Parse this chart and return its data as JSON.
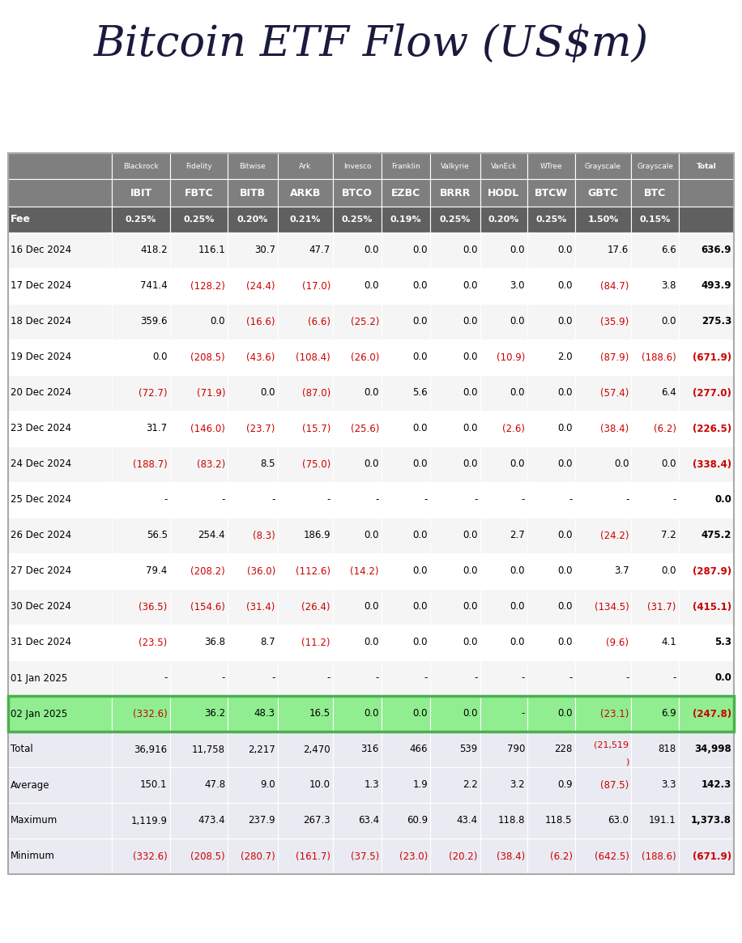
{
  "title": "Bitcoin ETF Flow (US$m)",
  "providers": [
    "Blackrock",
    "Fidelity",
    "Bitwise",
    "Ark",
    "Invesco",
    "Franklin",
    "Valkyrie",
    "VanEck",
    "WTree",
    "Grayscale",
    "Grayscale",
    "Total"
  ],
  "tickers": [
    "IBIT",
    "FBTC",
    "BITB",
    "ARKB",
    "BTCO",
    "EZBC",
    "BRRR",
    "HODL",
    "BTCW",
    "GBTC",
    "BTC",
    ""
  ],
  "fees": [
    "0.25%",
    "0.25%",
    "0.20%",
    "0.21%",
    "0.25%",
    "0.19%",
    "0.25%",
    "0.20%",
    "0.25%",
    "1.50%",
    "0.15%",
    ""
  ],
  "rows": [
    {
      "date": "16 Dec 2024",
      "values": [
        "418.2",
        "116.1",
        "30.7",
        "47.7",
        "0.0",
        "0.0",
        "0.0",
        "0.0",
        "0.0",
        "17.6",
        "6.6",
        "636.9"
      ],
      "highlight": false,
      "holiday": false
    },
    {
      "date": "17 Dec 2024",
      "values": [
        "741.4",
        "(128.2)",
        "(24.4)",
        "(17.0)",
        "0.0",
        "0.0",
        "0.0",
        "3.0",
        "0.0",
        "(84.7)",
        "3.8",
        "493.9"
      ],
      "highlight": false,
      "holiday": false
    },
    {
      "date": "18 Dec 2024",
      "values": [
        "359.6",
        "0.0",
        "(16.6)",
        "(6.6)",
        "(25.2)",
        "0.0",
        "0.0",
        "0.0",
        "0.0",
        "(35.9)",
        "0.0",
        "275.3"
      ],
      "highlight": false,
      "holiday": false
    },
    {
      "date": "19 Dec 2024",
      "values": [
        "0.0",
        "(208.5)",
        "(43.6)",
        "(108.4)",
        "(26.0)",
        "0.0",
        "0.0",
        "(10.9)",
        "2.0",
        "(87.9)",
        "(188.6)",
        "(671.9)"
      ],
      "highlight": false,
      "holiday": false
    },
    {
      "date": "20 Dec 2024",
      "values": [
        "(72.7)",
        "(71.9)",
        "0.0",
        "(87.0)",
        "0.0",
        "5.6",
        "0.0",
        "0.0",
        "0.0",
        "(57.4)",
        "6.4",
        "(277.0)"
      ],
      "highlight": false,
      "holiday": false
    },
    {
      "date": "23 Dec 2024",
      "values": [
        "31.7",
        "(146.0)",
        "(23.7)",
        "(15.7)",
        "(25.6)",
        "0.0",
        "0.0",
        "(2.6)",
        "0.0",
        "(38.4)",
        "(6.2)",
        "(226.5)"
      ],
      "highlight": false,
      "holiday": false
    },
    {
      "date": "24 Dec 2024",
      "values": [
        "(188.7)",
        "(83.2)",
        "8.5",
        "(75.0)",
        "0.0",
        "0.0",
        "0.0",
        "0.0",
        "0.0",
        "0.0",
        "0.0",
        "(338.4)"
      ],
      "highlight": false,
      "holiday": false
    },
    {
      "date": "25 Dec 2024",
      "values": [
        "-",
        "-",
        "-",
        "-",
        "-",
        "-",
        "-",
        "-",
        "-",
        "-",
        "-",
        "0.0"
      ],
      "highlight": false,
      "holiday": true
    },
    {
      "date": "26 Dec 2024",
      "values": [
        "56.5",
        "254.4",
        "(8.3)",
        "186.9",
        "0.0",
        "0.0",
        "0.0",
        "2.7",
        "0.0",
        "(24.2)",
        "7.2",
        "475.2"
      ],
      "highlight": false,
      "holiday": false
    },
    {
      "date": "27 Dec 2024",
      "values": [
        "79.4",
        "(208.2)",
        "(36.0)",
        "(112.6)",
        "(14.2)",
        "0.0",
        "0.0",
        "0.0",
        "0.0",
        "3.7",
        "0.0",
        "(287.9)"
      ],
      "highlight": false,
      "holiday": false
    },
    {
      "date": "30 Dec 2024",
      "values": [
        "(36.5)",
        "(154.6)",
        "(31.4)",
        "(26.4)",
        "0.0",
        "0.0",
        "0.0",
        "0.0",
        "0.0",
        "(134.5)",
        "(31.7)",
        "(415.1)"
      ],
      "highlight": false,
      "holiday": false
    },
    {
      "date": "31 Dec 2024",
      "values": [
        "(23.5)",
        "36.8",
        "8.7",
        "(11.2)",
        "0.0",
        "0.0",
        "0.0",
        "0.0",
        "0.0",
        "(9.6)",
        "4.1",
        "5.3"
      ],
      "highlight": false,
      "holiday": false
    },
    {
      "date": "01 Jan 2025",
      "values": [
        "-",
        "-",
        "-",
        "-",
        "-",
        "-",
        "-",
        "-",
        "-",
        "-",
        "-",
        "0.0"
      ],
      "highlight": false,
      "holiday": true
    },
    {
      "date": "02 Jan 2025",
      "values": [
        "(332.6)",
        "36.2",
        "48.3",
        "16.5",
        "0.0",
        "0.0",
        "0.0",
        "-",
        "0.0",
        "(23.1)",
        "6.9",
        "(247.8)"
      ],
      "highlight": true,
      "holiday": false
    }
  ],
  "summary_rows": [
    {
      "label": "Total",
      "values": [
        "36,916",
        "11,758",
        "2,217",
        "2,470",
        "316",
        "466",
        "539",
        "790",
        "228",
        "(21,519\n)",
        "818",
        "34,998"
      ]
    },
    {
      "label": "Average",
      "values": [
        "150.1",
        "47.8",
        "9.0",
        "10.0",
        "1.3",
        "1.9",
        "2.2",
        "3.2",
        "0.9",
        "(87.5)",
        "3.3",
        "142.3"
      ]
    },
    {
      "label": "Maximum",
      "values": [
        "1,119.9",
        "473.4",
        "237.9",
        "267.3",
        "63.4",
        "60.9",
        "43.4",
        "118.8",
        "118.5",
        "63.0",
        "191.1",
        "1,373.8"
      ]
    },
    {
      "label": "Minimum",
      "values": [
        "(332.6)",
        "(208.5)",
        "(280.7)",
        "(161.7)",
        "(37.5)",
        "(23.0)",
        "(20.2)",
        "(38.4)",
        "(6.2)",
        "(642.5)",
        "(188.6)",
        "(671.9)"
      ]
    }
  ],
  "header_bg": "#7f7f7f",
  "header_text_color": "#ffffff",
  "fee_bg": "#606060",
  "fee_text_color": "#ffffff",
  "highlight_bg": "#90ee90",
  "negative_color": "#cc0000",
  "positive_color": "#000000",
  "summary_bg": "#eaeaf2",
  "title_color": "#1a1a3e",
  "col_widths_rel": [
    1.58,
    0.88,
    0.88,
    0.76,
    0.84,
    0.74,
    0.74,
    0.76,
    0.72,
    0.72,
    0.86,
    0.72,
    0.84
  ]
}
